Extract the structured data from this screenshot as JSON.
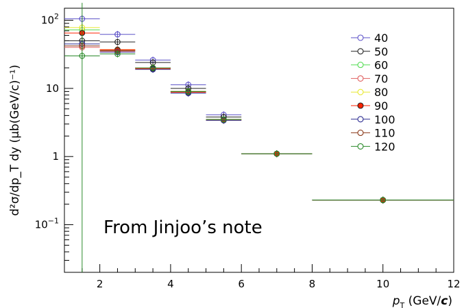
{
  "chart_data": {
    "type": "scatter",
    "title": "",
    "xlabel": {
      "main": "p",
      "sub": "T",
      "unit_open": " (GeV/",
      "unit_italic": "c",
      "unit_close": ")"
    },
    "ylabel": "d²σ/dp_T dy (μb(GeV/c)⁻¹)",
    "xlim": [
      1,
      12
    ],
    "ylim": [
      0.02,
      150
    ],
    "log_y": true,
    "grid": false,
    "legend_placement": "top-right",
    "x_ticks": [
      {
        "value": 2,
        "label": "2"
      },
      {
        "value": 4,
        "label": "4"
      },
      {
        "value": 6,
        "label": "6"
      },
      {
        "value": 8,
        "label": "8"
      },
      {
        "value": 10,
        "label": "10"
      },
      {
        "value": 12,
        "label": "12"
      }
    ],
    "y_ticks": [
      {
        "value": 100,
        "base": "10",
        "exp": "2"
      },
      {
        "value": 10,
        "base": "10",
        "exp": ""
      },
      {
        "value": 1,
        "base": "1",
        "exp": ""
      },
      {
        "value": 0.1,
        "base": "10",
        "exp": "−1"
      }
    ],
    "bins": [
      {
        "x": 1.5,
        "xerr": 0.5
      },
      {
        "x": 2.5,
        "xerr": 0.5
      },
      {
        "x": 3.5,
        "xerr": 0.5
      },
      {
        "x": 4.5,
        "xerr": 0.5
      },
      {
        "x": 5.5,
        "xerr": 0.5
      },
      {
        "x": 7,
        "xerr": 1
      },
      {
        "x": 10,
        "xerr": 2
      }
    ],
    "series": [
      {
        "name": "40",
        "color": "#5a4fc7",
        "filled": false,
        "values": [
          105,
          62,
          26,
          11.3,
          4.1,
          1.1,
          0.23
        ]
      },
      {
        "name": "50",
        "color": "#222222",
        "filled": false,
        "values": [
          50,
          48,
          24,
          10,
          3.8,
          1.1,
          0.23
        ]
      },
      {
        "name": "60",
        "color": "#55dd55",
        "filled": false,
        "values": [
          72,
          36,
          20,
          9,
          3.5,
          1.1,
          0.23
        ]
      },
      {
        "name": "70",
        "color": "#e06060",
        "filled": false,
        "values": [
          40,
          35,
          20,
          8.8,
          3.5,
          1.1,
          0.23
        ]
      },
      {
        "name": "80",
        "color": "#e8e830",
        "filled": false,
        "values": [
          78,
          37,
          20,
          9,
          3.5,
          1.1,
          0.23
        ]
      },
      {
        "name": "90",
        "color": "#ff2200",
        "filled": true,
        "values": [
          65,
          37,
          19.5,
          8.8,
          3.4,
          1.1,
          0.23
        ]
      },
      {
        "name": "100",
        "color": "#2a2a90",
        "filled": false,
        "values": [
          45,
          34,
          19,
          8.5,
          3.4,
          1.1,
          0.23
        ]
      },
      {
        "name": "110",
        "color": "#8b3a1a",
        "filled": false,
        "values": [
          42,
          36,
          20,
          9,
          3.5,
          1.1,
          0.23
        ]
      },
      {
        "name": "120",
        "color": "#2a8a2a",
        "filled": false,
        "values": [
          30,
          32,
          20,
          9,
          3.5,
          1.1,
          0.23
        ]
      }
    ],
    "annotation": "From Jinjoo’s note"
  }
}
